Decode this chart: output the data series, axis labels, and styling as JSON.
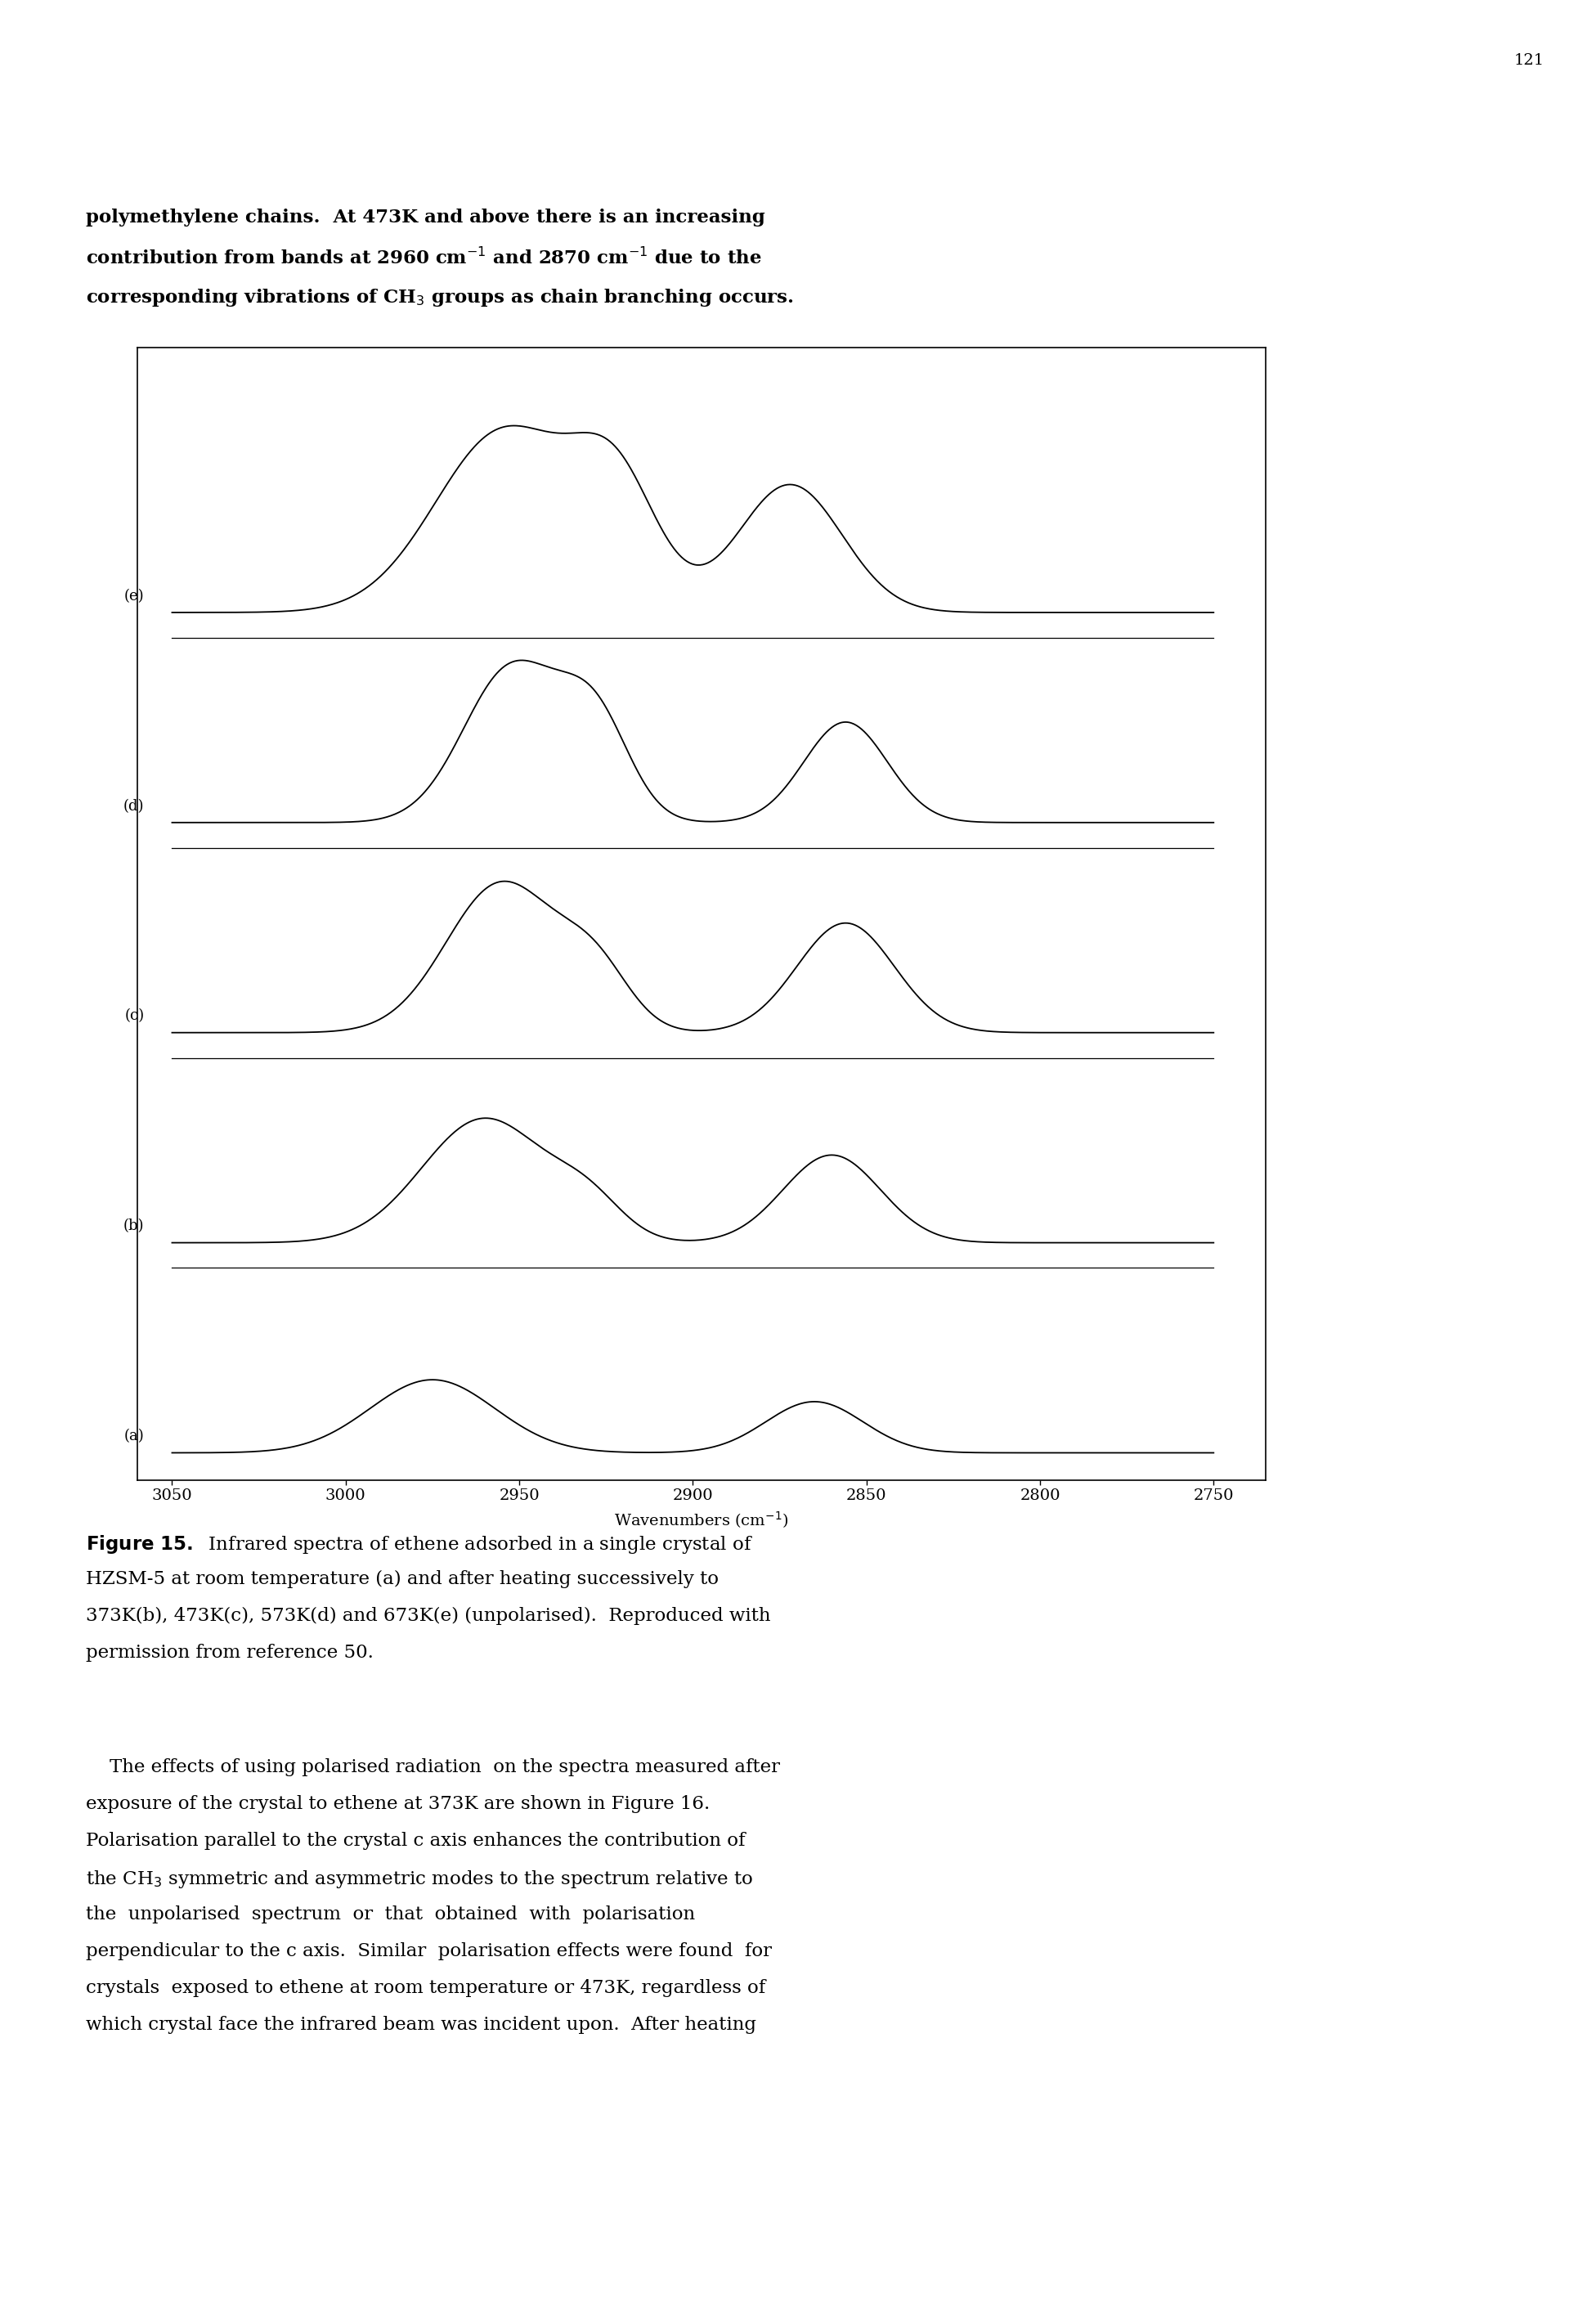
{
  "page_number": "121",
  "top_para": [
    "polymethylene chains.  At 473K and above there is an increasing",
    "contribution from bands at 2960 cm$^{-1}$ and 2870 cm$^{-1}$ due to the",
    "corresponding vibrations of CH$_3$ groups as chain branching occurs."
  ],
  "xmin": 2750,
  "xmax": 3050,
  "xlabel": "Wavenumbers (cm$^{-1}$)",
  "xticks": [
    3050,
    3000,
    2950,
    2900,
    2850,
    2800,
    2750
  ],
  "spectrum_labels_top_to_bottom": [
    "(e)",
    "(d)",
    "(c)",
    "(b)",
    "(a)"
  ],
  "caption_bold_part": "Figure 15.",
  "caption_rest": "  Infrared spectra of ethene adsorbed in a single crystal of\nHZSM-5 at room temperature (a) and after heating successively to\n373K(b), 473K(c), 573K(d) and 673K(e) (unpolarised).  Reproduced with\npermission from reference 50.",
  "bottom_para": [
    "    The effects of using polarised radiation  on the spectra measured after",
    "exposure of the crystal to ethene at 373K are shown in Figure 16.",
    "Polarisation parallel to the crystal c axis enhances the contribution of",
    "the CH$_3$ symmetric and asymmetric modes to the spectrum relative to",
    "the  unpolarised  spectrum  or  that  obtained  with  polarisation",
    "perpendicular to the c axis.  Similar  polarisation effects were found  for",
    "crystals  exposed to ethene at room temperature or 473K, regardless of",
    "which crystal face the infrared beam was incident upon.  After heating"
  ],
  "background_color": "#ffffff",
  "line_color": "#000000"
}
